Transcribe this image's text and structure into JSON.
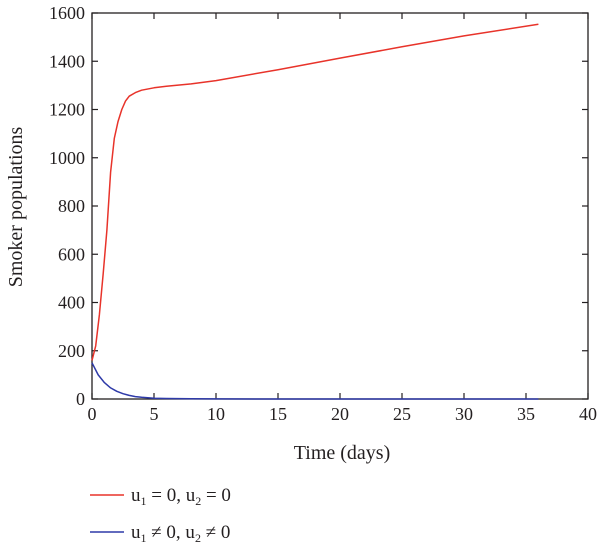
{
  "chart_data": {
    "type": "line",
    "title": "",
    "xlabel": "Time (days)",
    "ylabel": "Smoker populations",
    "xlim": [
      0,
      40
    ],
    "ylim": [
      0,
      1600
    ],
    "xticks": [
      "0",
      "5",
      "10",
      "15",
      "20",
      "25",
      "30",
      "35",
      "40"
    ],
    "yticks": [
      "0",
      "200",
      "400",
      "600",
      "800",
      "1000",
      "1200",
      "1400",
      "1600"
    ],
    "grid": false,
    "legend_position": "bottom-left, below plot",
    "series": [
      {
        "name": "u1 = 0, u2 = 0",
        "legend_parts": [
          "u",
          "1",
          " = 0, u",
          "2",
          " = 0"
        ],
        "color": "#e8332a",
        "x": [
          0,
          0.3,
          0.6,
          0.9,
          1.2,
          1.5,
          1.8,
          2.1,
          2.4,
          2.7,
          3.0,
          3.5,
          4,
          5,
          6,
          8,
          10,
          15,
          20,
          25,
          30,
          36
        ],
        "y": [
          160,
          220,
          350,
          520,
          700,
          940,
          1080,
          1150,
          1200,
          1235,
          1255,
          1270,
          1280,
          1290,
          1296,
          1306,
          1320,
          1365,
          1413,
          1460,
          1505,
          1553
        ]
      },
      {
        "name": "u1 ≠ 0, u2 ≠ 0",
        "legend_parts": [
          "u",
          "1",
          " ≠ 0, u",
          "2",
          " ≠ 0"
        ],
        "color": "#2e3aa8",
        "x": [
          0,
          0.5,
          1,
          1.5,
          2,
          2.5,
          3,
          3.5,
          4,
          4.5,
          5,
          6,
          8,
          10,
          15,
          20,
          25,
          30,
          36
        ],
        "y": [
          150,
          100,
          68,
          46,
          32,
          22,
          15,
          10,
          7,
          5,
          3,
          2,
          1,
          0.5,
          0,
          0,
          0,
          0,
          0
        ]
      }
    ]
  }
}
